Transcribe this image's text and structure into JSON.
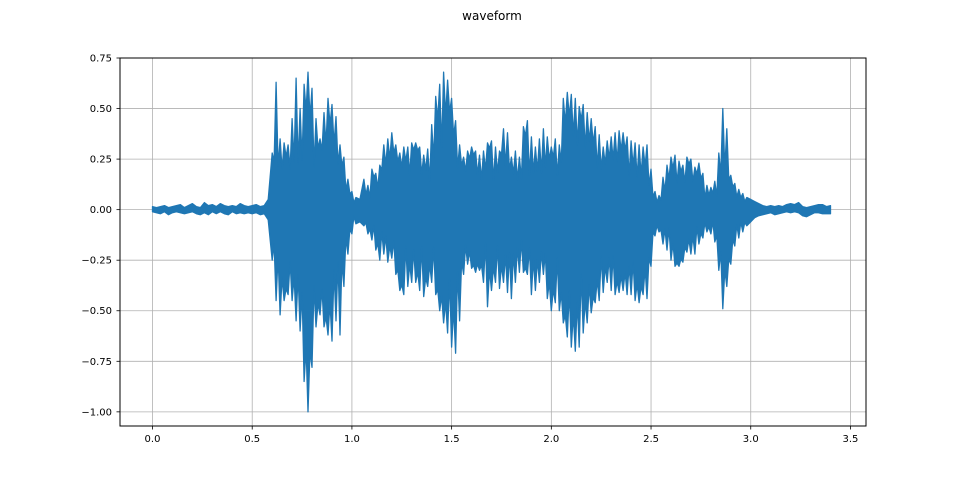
{
  "chart_data": {
    "type": "area",
    "subtype": "audio-waveform-envelope",
    "title": "waveform",
    "xlabel": "",
    "ylabel": "",
    "grid": true,
    "legend": "none",
    "xlim": [
      -0.163,
      3.578
    ],
    "ylim": [
      -1.07,
      0.75
    ],
    "x_ticks": [
      0.0,
      0.5,
      1.0,
      1.5,
      2.0,
      2.5,
      3.0,
      3.5
    ],
    "x_tick_labels": [
      "0.0",
      "0.5",
      "1.0",
      "1.5",
      "2.0",
      "2.5",
      "3.0",
      "3.5"
    ],
    "y_ticks": [
      0.75,
      0.5,
      0.25,
      0.0,
      -0.25,
      -0.5,
      -0.75,
      -1.0
    ],
    "y_tick_labels": [
      "0.75",
      "0.50",
      "0.25",
      "0.00",
      "−0.25",
      "−0.50",
      "−0.75",
      "−1.00"
    ],
    "colors": {
      "line": "#1f77b4",
      "grid": "#b0b0b0",
      "spine": "#000000",
      "background": "#ffffff",
      "text": "#000000"
    },
    "series": [
      {
        "name": "waveform",
        "sample_format": "[time_s, min_amplitude, max_amplitude]",
        "duration_s": 3.4,
        "envelope": [
          [
            0.0,
            -0.01,
            0.015
          ],
          [
            0.02,
            -0.015,
            0.01
          ],
          [
            0.04,
            -0.02,
            0.015
          ],
          [
            0.06,
            -0.01,
            0.02
          ],
          [
            0.08,
            -0.025,
            0.01
          ],
          [
            0.1,
            -0.015,
            0.015
          ],
          [
            0.12,
            -0.01,
            0.02
          ],
          [
            0.14,
            -0.015,
            0.025
          ],
          [
            0.16,
            -0.02,
            0.01
          ],
          [
            0.18,
            -0.015,
            0.02
          ],
          [
            0.2,
            -0.01,
            0.03
          ],
          [
            0.22,
            -0.02,
            0.015
          ],
          [
            0.24,
            -0.025,
            0.01
          ],
          [
            0.26,
            -0.015,
            0.035
          ],
          [
            0.28,
            -0.025,
            0.02
          ],
          [
            0.3,
            -0.01,
            0.025
          ],
          [
            0.32,
            -0.02,
            0.015
          ],
          [
            0.34,
            -0.01,
            0.03
          ],
          [
            0.36,
            -0.02,
            0.02
          ],
          [
            0.38,
            -0.025,
            0.015
          ],
          [
            0.4,
            -0.01,
            0.02
          ],
          [
            0.42,
            -0.02,
            0.015
          ],
          [
            0.44,
            -0.015,
            0.03
          ],
          [
            0.46,
            -0.02,
            0.02
          ],
          [
            0.48,
            -0.015,
            0.015
          ],
          [
            0.5,
            -0.02,
            0.02
          ],
          [
            0.52,
            -0.015,
            0.025
          ],
          [
            0.54,
            -0.025,
            0.015
          ],
          [
            0.56,
            -0.02,
            0.02
          ],
          [
            0.58,
            -0.05,
            0.05
          ],
          [
            0.6,
            -0.25,
            0.28
          ],
          [
            0.62,
            -0.45,
            0.63
          ],
          [
            0.64,
            -0.52,
            0.35
          ],
          [
            0.66,
            -0.45,
            0.33
          ],
          [
            0.68,
            -0.42,
            0.32
          ],
          [
            0.7,
            -0.45,
            0.45
          ],
          [
            0.72,
            -0.55,
            0.65
          ],
          [
            0.74,
            -0.6,
            0.5
          ],
          [
            0.76,
            -0.85,
            0.62
          ],
          [
            0.78,
            -1.0,
            0.68
          ],
          [
            0.8,
            -0.78,
            0.6
          ],
          [
            0.82,
            -0.58,
            0.45
          ],
          [
            0.84,
            -0.52,
            0.35
          ],
          [
            0.86,
            -0.58,
            0.48
          ],
          [
            0.88,
            -0.62,
            0.55
          ],
          [
            0.9,
            -0.65,
            0.52
          ],
          [
            0.92,
            -0.55,
            0.46
          ],
          [
            0.94,
            -0.62,
            0.32
          ],
          [
            0.96,
            -0.38,
            0.26
          ],
          [
            0.98,
            -0.22,
            0.15
          ],
          [
            1.0,
            -0.12,
            0.09
          ],
          [
            1.02,
            -0.07,
            0.06
          ],
          [
            1.04,
            -0.06,
            0.05
          ],
          [
            1.06,
            -0.08,
            0.15
          ],
          [
            1.08,
            -0.12,
            0.12
          ],
          [
            1.1,
            -0.15,
            0.2
          ],
          [
            1.12,
            -0.2,
            0.18
          ],
          [
            1.14,
            -0.25,
            0.22
          ],
          [
            1.16,
            -0.22,
            0.32
          ],
          [
            1.18,
            -0.26,
            0.35
          ],
          [
            1.2,
            -0.24,
            0.38
          ],
          [
            1.22,
            -0.32,
            0.32
          ],
          [
            1.24,
            -0.4,
            0.28
          ],
          [
            1.26,
            -0.42,
            0.31
          ],
          [
            1.28,
            -0.38,
            0.31
          ],
          [
            1.3,
            -0.36,
            0.33
          ],
          [
            1.32,
            -0.36,
            0.33
          ],
          [
            1.34,
            -0.4,
            0.31
          ],
          [
            1.36,
            -0.43,
            0.27
          ],
          [
            1.38,
            -0.38,
            0.3
          ],
          [
            1.4,
            -0.36,
            0.42
          ],
          [
            1.42,
            -0.42,
            0.56
          ],
          [
            1.44,
            -0.5,
            0.62
          ],
          [
            1.46,
            -0.56,
            0.68
          ],
          [
            1.48,
            -0.61,
            0.64
          ],
          [
            1.5,
            -0.68,
            0.55
          ],
          [
            1.52,
            -0.71,
            0.44
          ],
          [
            1.54,
            -0.55,
            0.32
          ],
          [
            1.56,
            -0.32,
            0.26
          ],
          [
            1.58,
            -0.27,
            0.29
          ],
          [
            1.6,
            -0.29,
            0.31
          ],
          [
            1.62,
            -0.31,
            0.29
          ],
          [
            1.64,
            -0.3,
            0.27
          ],
          [
            1.66,
            -0.36,
            0.29
          ],
          [
            1.68,
            -0.48,
            0.33
          ],
          [
            1.7,
            -0.4,
            0.34
          ],
          [
            1.72,
            -0.36,
            0.31
          ],
          [
            1.74,
            -0.39,
            0.29
          ],
          [
            1.76,
            -0.36,
            0.4
          ],
          [
            1.78,
            -0.41,
            0.38
          ],
          [
            1.8,
            -0.44,
            0.26
          ],
          [
            1.82,
            -0.36,
            0.29
          ],
          [
            1.84,
            -0.31,
            0.26
          ],
          [
            1.86,
            -0.31,
            0.41
          ],
          [
            1.88,
            -0.32,
            0.44
          ],
          [
            1.9,
            -0.42,
            0.36
          ],
          [
            1.92,
            -0.4,
            0.31
          ],
          [
            1.94,
            -0.36,
            0.35
          ],
          [
            1.96,
            -0.32,
            0.4
          ],
          [
            1.98,
            -0.44,
            0.36
          ],
          [
            2.0,
            -0.5,
            0.31
          ],
          [
            2.02,
            -0.46,
            0.35
          ],
          [
            2.04,
            -0.5,
            0.32
          ],
          [
            2.06,
            -0.56,
            0.55
          ],
          [
            2.08,
            -0.63,
            0.58
          ],
          [
            2.1,
            -0.68,
            0.57
          ],
          [
            2.12,
            -0.7,
            0.55
          ],
          [
            2.14,
            -0.68,
            0.51
          ],
          [
            2.16,
            -0.61,
            0.52
          ],
          [
            2.18,
            -0.56,
            0.48
          ],
          [
            2.2,
            -0.51,
            0.45
          ],
          [
            2.22,
            -0.46,
            0.41
          ],
          [
            2.24,
            -0.45,
            0.37
          ],
          [
            2.26,
            -0.41,
            0.31
          ],
          [
            2.28,
            -0.36,
            0.34
          ],
          [
            2.3,
            -0.4,
            0.36
          ],
          [
            2.32,
            -0.42,
            0.38
          ],
          [
            2.34,
            -0.41,
            0.39
          ],
          [
            2.36,
            -0.4,
            0.38
          ],
          [
            2.38,
            -0.42,
            0.36
          ],
          [
            2.4,
            -0.42,
            0.34
          ],
          [
            2.42,
            -0.45,
            0.33
          ],
          [
            2.44,
            -0.46,
            0.32
          ],
          [
            2.46,
            -0.42,
            0.31
          ],
          [
            2.48,
            -0.44,
            0.32
          ],
          [
            2.5,
            -0.28,
            0.2
          ],
          [
            2.52,
            -0.13,
            0.09
          ],
          [
            2.54,
            -0.11,
            0.07
          ],
          [
            2.56,
            -0.17,
            0.16
          ],
          [
            2.58,
            -0.2,
            0.22
          ],
          [
            2.6,
            -0.25,
            0.26
          ],
          [
            2.62,
            -0.28,
            0.27
          ],
          [
            2.64,
            -0.28,
            0.24
          ],
          [
            2.66,
            -0.26,
            0.22
          ],
          [
            2.68,
            -0.21,
            0.26
          ],
          [
            2.7,
            -0.22,
            0.25
          ],
          [
            2.72,
            -0.22,
            0.21
          ],
          [
            2.74,
            -0.17,
            0.23
          ],
          [
            2.76,
            -0.14,
            0.18
          ],
          [
            2.78,
            -0.11,
            0.12
          ],
          [
            2.8,
            -0.12,
            0.11
          ],
          [
            2.82,
            -0.16,
            0.14
          ],
          [
            2.84,
            -0.3,
            0.28
          ],
          [
            2.86,
            -0.49,
            0.5
          ],
          [
            2.88,
            -0.38,
            0.4
          ],
          [
            2.9,
            -0.27,
            0.17
          ],
          [
            2.92,
            -0.18,
            0.13
          ],
          [
            2.94,
            -0.14,
            0.1
          ],
          [
            2.96,
            -0.11,
            0.08
          ],
          [
            2.98,
            -0.08,
            0.06
          ],
          [
            3.0,
            -0.06,
            0.05
          ],
          [
            3.02,
            -0.04,
            0.04
          ],
          [
            3.04,
            -0.03,
            0.03
          ],
          [
            3.06,
            -0.025,
            0.02
          ],
          [
            3.08,
            -0.02,
            0.015
          ],
          [
            3.1,
            -0.015,
            0.02
          ],
          [
            3.12,
            -0.025,
            0.015
          ],
          [
            3.14,
            -0.02,
            0.02
          ],
          [
            3.16,
            -0.015,
            0.015
          ],
          [
            3.18,
            -0.01,
            0.025
          ],
          [
            3.2,
            -0.015,
            0.03
          ],
          [
            3.22,
            -0.01,
            0.025
          ],
          [
            3.24,
            -0.015,
            0.035
          ],
          [
            3.26,
            -0.03,
            0.015
          ],
          [
            3.28,
            -0.035,
            0.01
          ],
          [
            3.3,
            -0.025,
            0.015
          ],
          [
            3.32,
            -0.015,
            0.02
          ],
          [
            3.34,
            -0.015,
            0.025
          ],
          [
            3.36,
            -0.02,
            0.025
          ],
          [
            3.38,
            -0.02,
            0.015
          ],
          [
            3.4,
            -0.02,
            0.02
          ]
        ]
      }
    ]
  }
}
